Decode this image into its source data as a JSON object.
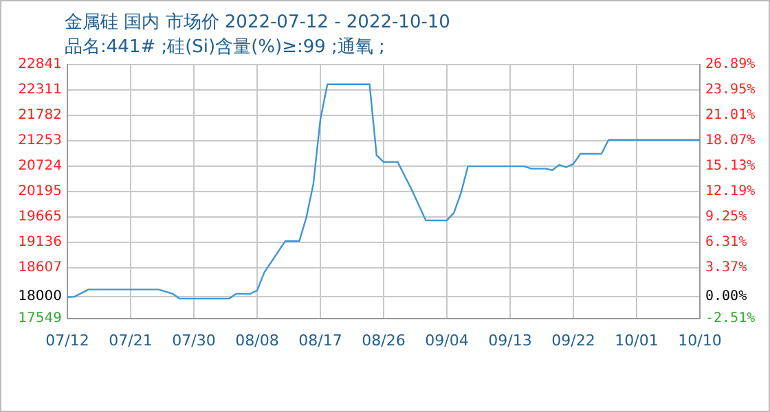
{
  "chart_data": {
    "type": "line",
    "title": "金属硅 国内 市场价 2022-07-12 - 2022-10-10",
    "subtitle": "品名:441# ;硅(Si)含量(%)≥:99 ;通氧 ;",
    "x": [
      "2022-07-12",
      "2022-07-13",
      "2022-07-15",
      "2022-07-25",
      "2022-07-27",
      "2022-07-28",
      "2022-08-04",
      "2022-08-05",
      "2022-08-07",
      "2022-08-08",
      "2022-08-09",
      "2022-08-12",
      "2022-08-14",
      "2022-08-15",
      "2022-08-16",
      "2022-08-17",
      "2022-08-18",
      "2022-08-24",
      "2022-08-25",
      "2022-08-26",
      "2022-08-28",
      "2022-08-30",
      "2022-09-01",
      "2022-09-04",
      "2022-09-05",
      "2022-09-06",
      "2022-09-07",
      "2022-09-15",
      "2022-09-16",
      "2022-09-18",
      "2022-09-19",
      "2022-09-20",
      "2022-09-21",
      "2022-09-22",
      "2022-09-23",
      "2022-09-26",
      "2022-09-27",
      "2022-10-10"
    ],
    "values": [
      17990,
      18000,
      18150,
      18150,
      18060,
      17960,
      17960,
      18060,
      18060,
      18130,
      18500,
      19160,
      19160,
      19650,
      20350,
      21700,
      22430,
      22430,
      20950,
      20810,
      20810,
      20230,
      19590,
      19590,
      19750,
      20160,
      20720,
      20720,
      20670,
      20670,
      20640,
      20750,
      20700,
      20770,
      20980,
      20980,
      21270,
      21270
    ],
    "color": "#3d97d4",
    "xlim": [
      "2022-07-12",
      "2022-10-10"
    ],
    "xticks": [
      {
        "value": "2022-07-12",
        "label": "07/12"
      },
      {
        "value": "2022-07-21",
        "label": "07/21"
      },
      {
        "value": "2022-07-30",
        "label": "07/30"
      },
      {
        "value": "2022-08-08",
        "label": "08/08"
      },
      {
        "value": "2022-08-17",
        "label": "08/17"
      },
      {
        "value": "2022-08-26",
        "label": "08/26"
      },
      {
        "value": "2022-09-04",
        "label": "09/04"
      },
      {
        "value": "2022-09-13",
        "label": "09/13"
      },
      {
        "value": "2022-09-22",
        "label": "09/22"
      },
      {
        "value": "2022-10-01",
        "label": "10/01"
      },
      {
        "value": "2022-10-10",
        "label": "10/10"
      }
    ],
    "ylim": [
      17549,
      22841
    ],
    "yticks": [
      17549,
      18000,
      18607,
      19136,
      19665,
      20195,
      20724,
      21253,
      21782,
      22311,
      22841
    ],
    "y2lim": [
      -2.51,
      26.89
    ],
    "y2ticks": [
      {
        "value": -2.51,
        "label": "-2.51%"
      },
      {
        "value": 0,
        "label": "0.00%"
      },
      {
        "value": 3.37,
        "label": "3.37%"
      },
      {
        "value": 6.31,
        "label": "6.31%"
      },
      {
        "value": 9.25,
        "label": "9.25%"
      },
      {
        "value": 12.19,
        "label": "12.19%"
      },
      {
        "value": 15.13,
        "label": "15.13%"
      },
      {
        "value": 18.07,
        "label": "18.07%"
      },
      {
        "value": 21.01,
        "label": "21.01%"
      },
      {
        "value": 23.95,
        "label": "23.95%"
      },
      {
        "value": 26.89,
        "label": "26.89%"
      }
    ],
    "grid": true
  }
}
